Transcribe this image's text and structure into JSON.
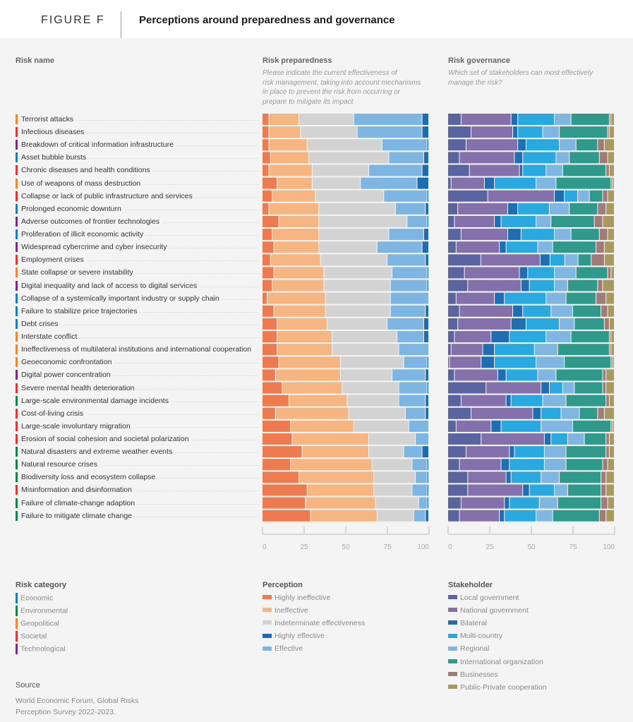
{
  "header": {
    "figure_label": "FIGURE F",
    "title": "Perceptions around preparedness and governance"
  },
  "columns": {
    "risk_name": "Risk name",
    "preparedness_title": "Risk preparedness",
    "preparedness_subtitle": [
      "Please indicate the current effectiveness of",
      "risk management, taking into account mechanisms",
      "in place to prevent the risk from occurring or",
      "prepare to mitigate its impact"
    ],
    "governance_title": "Risk governance",
    "governance_subtitle": [
      "Which set of stakeholders can most effectively",
      "manage the risk?"
    ]
  },
  "colors": {
    "categories": {
      "Economic": "#1f7ab5",
      "Environmental": "#178049",
      "Geopolitical": "#e8873a",
      "Societal": "#d9383a",
      "Technological": "#7b2a83"
    },
    "perception": {
      "Highly ineffective": "#ee7b4f",
      "Ineffective": "#f6b581",
      "Indeterminate effectiveness": "#d3d3d3",
      "Effective": "#7db6e2",
      "Highly effective": "#1e6cb3"
    },
    "stakeholder": {
      "Local government": "#5a64a0",
      "National government": "#8470ab",
      "Bilateral": "#1f6db3",
      "Multi-country": "#2aa9e0",
      "Regional": "#80b7e2",
      "International organization": "#2f9a8c",
      "Businesses": "#a17c77",
      "Public-Private cooperation": "#a89a5e"
    }
  },
  "chart_data": [
    {
      "type": "bar",
      "orientation": "horizontal-stacked-100",
      "title": "Risk preparedness",
      "xlabel": "",
      "xlim": [
        0,
        100
      ],
      "xticks": [
        0,
        25,
        50,
        75,
        100
      ],
      "grid": false,
      "categories": [
        "Terrorist attacks",
        "Infectious diseases",
        "Breakdown of critical information infrastructure",
        "Asset bubble bursts",
        "Chronic diseases and health conditions",
        "Use of weapons of mass destruction",
        "Collapse or lack of public infrastructure and services",
        "Prolonged economic downturn",
        "Adverse outcomes of frontier technologies",
        "Proliferation of illicit economic activity",
        "Widespread cybercrime and cyber insecurity",
        "Employment crises",
        "State collapse or severe instability",
        "Digital inequality and lack of access to digital services",
        "Collapse of a systemically important industry or supply chain",
        "Failure to stabilize price trajectories",
        "Debt crises",
        "Interstate conflict",
        "Ineffectiveness of multilateral institutions and international cooperation",
        "Geoeconomic confrontation",
        "Digital power concentration",
        "Severe mental health deterioration",
        "Large-scale environmental damage incidents",
        "Cost-of-living crisis",
        "Large-scale involuntary migration",
        "Erosion of social cohesion and societal polarization",
        "Natural disasters and extreme weather events",
        "Natural resource crises",
        "Biodiversity loss and ecosystem collapse",
        "Misinformation and disinformation",
        "Failure of climate-change adaption",
        "Failure to mitigate climate change"
      ],
      "series": [
        {
          "name": "Highly ineffective",
          "values": [
            4,
            4,
            4,
            5,
            4,
            9,
            6,
            4,
            10,
            6,
            7,
            5,
            7,
            6,
            3,
            7,
            9,
            9,
            9,
            10,
            8,
            12,
            16,
            8,
            17,
            18,
            24,
            17,
            22,
            27,
            26,
            29
          ]
        },
        {
          "name": "Ineffective",
          "values": [
            18,
            19,
            23,
            23,
            26,
            21,
            26,
            30,
            24,
            28,
            27,
            30,
            30,
            31,
            35,
            31,
            30,
            33,
            33,
            37,
            39,
            36,
            35,
            44,
            38,
            46,
            40,
            49,
            45,
            40,
            42,
            40
          ]
        },
        {
          "name": "Indeterminate effectiveness",
          "values": [
            33,
            34,
            45,
            48,
            34,
            29,
            41,
            46,
            53,
            42,
            35,
            40,
            41,
            40,
            39,
            39,
            36,
            39,
            40,
            38,
            31,
            34,
            31,
            34,
            33,
            28,
            21,
            24,
            25,
            23,
            26,
            22
          ]
        },
        {
          "name": "Effective",
          "values": [
            41,
            39,
            27,
            21,
            32,
            34,
            26,
            18,
            12,
            21,
            27,
            23,
            21,
            22,
            23,
            21,
            22,
            16,
            18,
            14,
            20,
            17,
            16,
            12,
            12,
            8,
            11,
            9,
            7,
            9,
            5,
            7
          ]
        },
        {
          "name": "Highly effective",
          "values": [
            4,
            4,
            1,
            3,
            4,
            7,
            1,
            2,
            1,
            3,
            4,
            2,
            1,
            1,
            0,
            2,
            3,
            3,
            0,
            1,
            2,
            1,
            2,
            2,
            0,
            0,
            4,
            1,
            1,
            1,
            1,
            2
          ]
        }
      ]
    },
    {
      "type": "bar",
      "orientation": "horizontal-stacked-100",
      "title": "Risk governance",
      "xlabel": "",
      "xlim": [
        0,
        100
      ],
      "xticks": [
        0,
        25,
        50,
        75,
        100
      ],
      "grid": false,
      "categories": "same as Risk preparedness",
      "series": [
        {
          "name": "Local government",
          "values": [
            8,
            14,
            11,
            7,
            13,
            2,
            24,
            6,
            4,
            8,
            5,
            20,
            10,
            12,
            5,
            7,
            6,
            4,
            2,
            1,
            4,
            23,
            8,
            14,
            5,
            20,
            11,
            7,
            12,
            12,
            8,
            7
          ]
        },
        {
          "name": "National government",
          "values": [
            30,
            25,
            31,
            33,
            30,
            20,
            40,
            30,
            24,
            28,
            26,
            36,
            33,
            32,
            23,
            32,
            32,
            22,
            19,
            19,
            26,
            33,
            27,
            37,
            21,
            38,
            26,
            25,
            23,
            33,
            26,
            24
          ]
        },
        {
          "name": "Bilateral",
          "values": [
            4,
            3,
            5,
            5,
            2,
            6,
            6,
            6,
            4,
            8,
            4,
            6,
            5,
            5,
            6,
            6,
            9,
            11,
            7,
            8,
            5,
            5,
            3,
            5,
            6,
            4,
            3,
            5,
            3,
            4,
            3,
            3
          ]
        },
        {
          "name": "Multi-country",
          "values": [
            22,
            15,
            20,
            20,
            14,
            25,
            8,
            19,
            21,
            20,
            19,
            9,
            16,
            15,
            25,
            17,
            20,
            22,
            24,
            25,
            19,
            8,
            19,
            12,
            24,
            10,
            18,
            21,
            18,
            15,
            18,
            19
          ]
        },
        {
          "name": "Regional",
          "values": [
            10,
            10,
            10,
            8,
            10,
            12,
            7,
            12,
            9,
            10,
            9,
            8,
            13,
            8,
            12,
            13,
            9,
            15,
            14,
            17,
            11,
            7,
            14,
            11,
            19,
            10,
            13,
            13,
            11,
            8,
            11,
            10
          ]
        },
        {
          "name": "International organization",
          "values": [
            23,
            29,
            13,
            18,
            26,
            33,
            8,
            17,
            26,
            17,
            26,
            8,
            19,
            18,
            18,
            17,
            18,
            23,
            31,
            28,
            28,
            17,
            24,
            11,
            23,
            13,
            24,
            22,
            25,
            20,
            26,
            28
          ]
        },
        {
          "name": "Businesses",
          "values": [
            1,
            1,
            4,
            5,
            2,
            1,
            3,
            5,
            5,
            5,
            5,
            8,
            2,
            3,
            6,
            4,
            3,
            1,
            1,
            1,
            2,
            2,
            2,
            4,
            1,
            2,
            2,
            3,
            3,
            3,
            4,
            4
          ]
        },
        {
          "name": "Public-Private cooperation",
          "values": [
            2,
            3,
            6,
            4,
            3,
            1,
            4,
            5,
            7,
            4,
            6,
            6,
            2,
            7,
            5,
            4,
            3,
            2,
            2,
            1,
            5,
            5,
            3,
            6,
            1,
            3,
            3,
            4,
            5,
            5,
            4,
            5
          ]
        }
      ]
    }
  ],
  "risk_categories": [
    "Geopolitical",
    "Societal",
    "Technological",
    "Economic",
    "Societal",
    "Geopolitical",
    "Societal",
    "Economic",
    "Technological",
    "Economic",
    "Technological",
    "Societal",
    "Geopolitical",
    "Technological",
    "Economic",
    "Economic",
    "Economic",
    "Geopolitical",
    "Geopolitical",
    "Geopolitical",
    "Technological",
    "Societal",
    "Environmental",
    "Societal",
    "Societal",
    "Societal",
    "Environmental",
    "Environmental",
    "Environmental",
    "Societal",
    "Environmental",
    "Environmental"
  ],
  "legends": {
    "category_title": "Risk category",
    "categories": [
      "Economic",
      "Environmental",
      "Geopolitical",
      "Societal",
      "Technological"
    ],
    "perception_title": "Perception",
    "perception": [
      "Highly ineffective",
      "Ineffective",
      "Indeterminate effectiveness",
      "Highly effective",
      "Effective"
    ],
    "stakeholder_title": "Stakeholder",
    "stakeholder": [
      "Local government",
      "National government",
      "Bilateral",
      "Multi-country",
      "Regional",
      "International organization",
      "Businesses",
      "Public-Private cooperation"
    ]
  },
  "source": {
    "title": "Source",
    "lines": [
      "World Economic Forum, Global Risks",
      "Perception Survey 2022-2023."
    ]
  }
}
